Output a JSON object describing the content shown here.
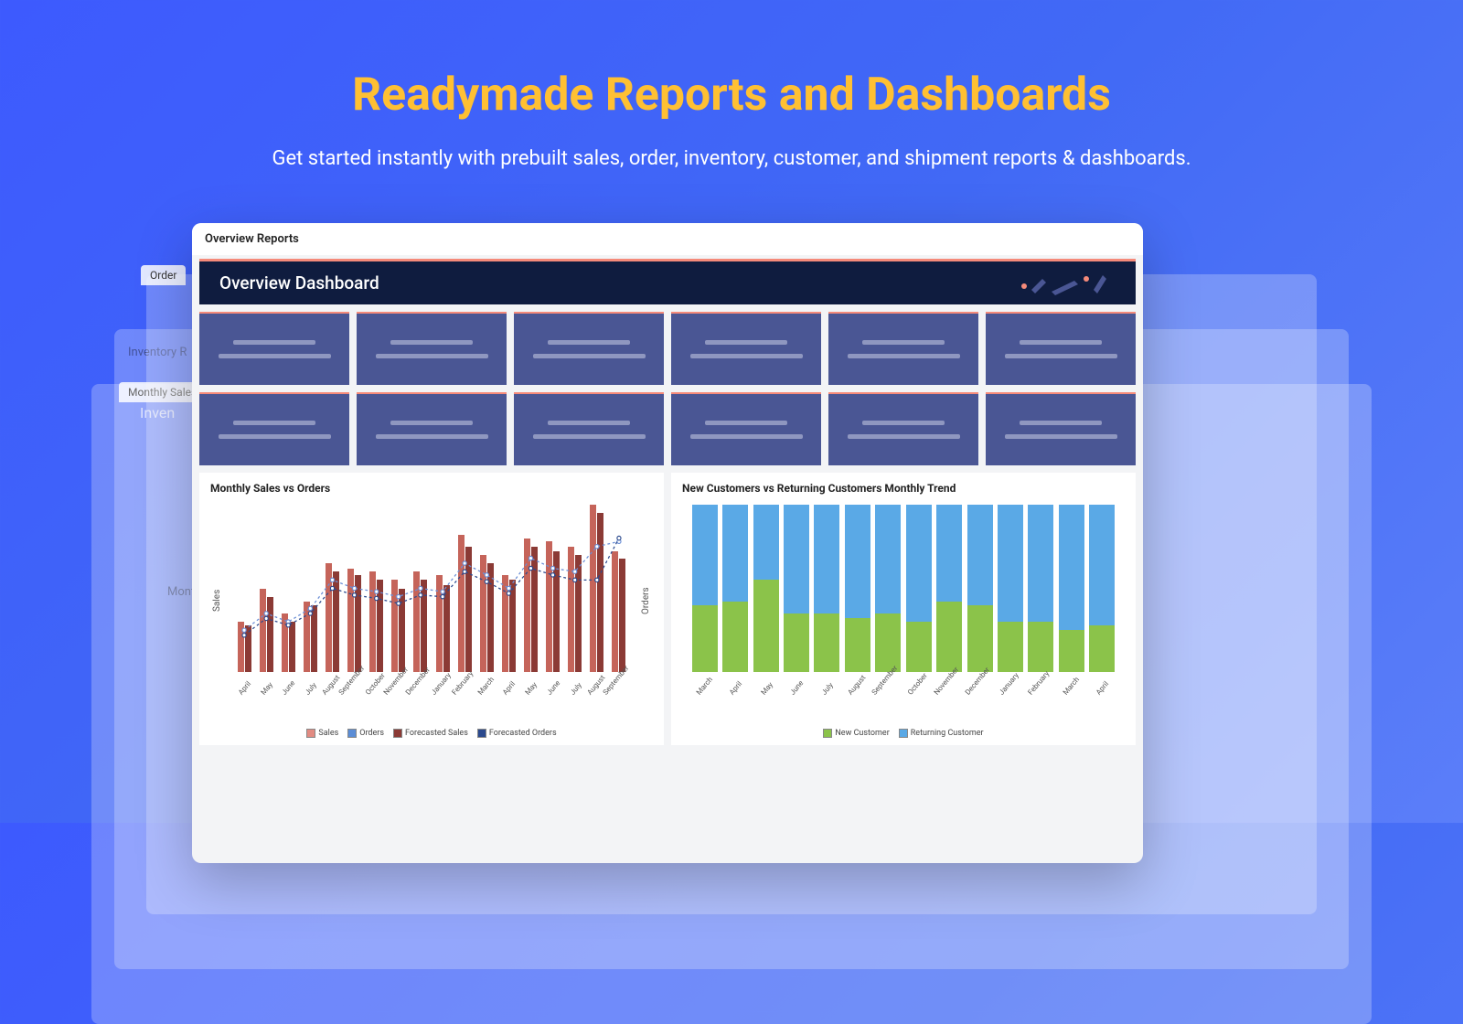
{
  "hero": {
    "title": "Readymade Reports and Dashboards",
    "subtitle": "Get started instantly with prebuilt sales, order, inventory, customer, and shipment reports & dashboards.",
    "title_color": "#ffc033",
    "subtitle_color": "#ffffff",
    "bg_gradient_from": "#3d5afe",
    "bg_gradient_to": "#5b7ef9"
  },
  "bg_windows": {
    "tab1": "Order",
    "label1": "Inventory R",
    "label2": "Inven",
    "label3": "Month",
    "label4": "Monthly Sales",
    "side_axis": "Sales"
  },
  "main_window": {
    "header": "Overview Reports",
    "dashboard_title": "Overview Dashboard",
    "hero_bg": "#0f1c3f",
    "hero_accent": "#f58a7a",
    "kpi_card_bg": "#4a5694",
    "kpi_line_color": "#8f97c0",
    "kpi_count": 12
  },
  "sales_chart": {
    "title": "Monthly Sales vs Orders",
    "y_left": "Sales",
    "y_right": "Orders",
    "type": "grouped-bar-with-lines",
    "categories": [
      "April",
      "May",
      "June",
      "July",
      "August",
      "September",
      "October",
      "November",
      "December",
      "January",
      "February",
      "March",
      "April",
      "May",
      "June",
      "July",
      "August",
      "September"
    ],
    "sales": [
      30,
      50,
      35,
      42,
      65,
      62,
      60,
      55,
      60,
      58,
      82,
      70,
      58,
      80,
      78,
      75,
      100,
      72
    ],
    "orders": [
      28,
      45,
      30,
      40,
      60,
      58,
      55,
      50,
      55,
      52,
      75,
      65,
      55,
      75,
      72,
      70,
      95,
      68
    ],
    "forecast_sales": [
      25,
      35,
      30,
      38,
      55,
      50,
      48,
      45,
      50,
      48,
      65,
      58,
      50,
      68,
      62,
      60,
      75,
      78
    ],
    "forecast_orders": [
      22,
      32,
      28,
      35,
      50,
      46,
      44,
      41,
      46,
      45,
      60,
      54,
      47,
      62,
      58,
      55,
      55,
      80
    ],
    "colors": {
      "sales": "#c5645a",
      "orders": "#8b3a35",
      "forecast_sales_line": "#6b8fd6",
      "forecast_orders_line": "#2b4a8e",
      "marker": "#6b8fd6"
    },
    "legend": [
      {
        "label": "Sales",
        "color": "#e28b82",
        "checked": true
      },
      {
        "label": "Orders",
        "color": "#5b8dd6",
        "checked": true
      },
      {
        "label": "Forecasted Sales",
        "color": "#8b3a35",
        "checked": true
      },
      {
        "label": "Forecasted Orders",
        "color": "#2b4a8e",
        "checked": true
      }
    ]
  },
  "customers_chart": {
    "title": "New Customers vs Returning Customers Monthly Trend",
    "type": "stacked-bar",
    "categories": [
      "March",
      "April",
      "May",
      "June",
      "July",
      "August",
      "September",
      "October",
      "November",
      "December",
      "January",
      "February",
      "March",
      "April"
    ],
    "new_customer": [
      40,
      42,
      55,
      35,
      35,
      32,
      35,
      30,
      42,
      40,
      30,
      30,
      25,
      28
    ],
    "returning_customer": [
      60,
      58,
      45,
      65,
      65,
      68,
      65,
      70,
      58,
      60,
      70,
      70,
      75,
      72
    ],
    "colors": {
      "new": "#8bc34a",
      "returning": "#5aa9e6"
    },
    "legend": [
      {
        "label": "New Customer",
        "color": "#8bc34a",
        "checked": true
      },
      {
        "label": "Returning Customer",
        "color": "#5aa9e6",
        "checked": true
      }
    ]
  }
}
